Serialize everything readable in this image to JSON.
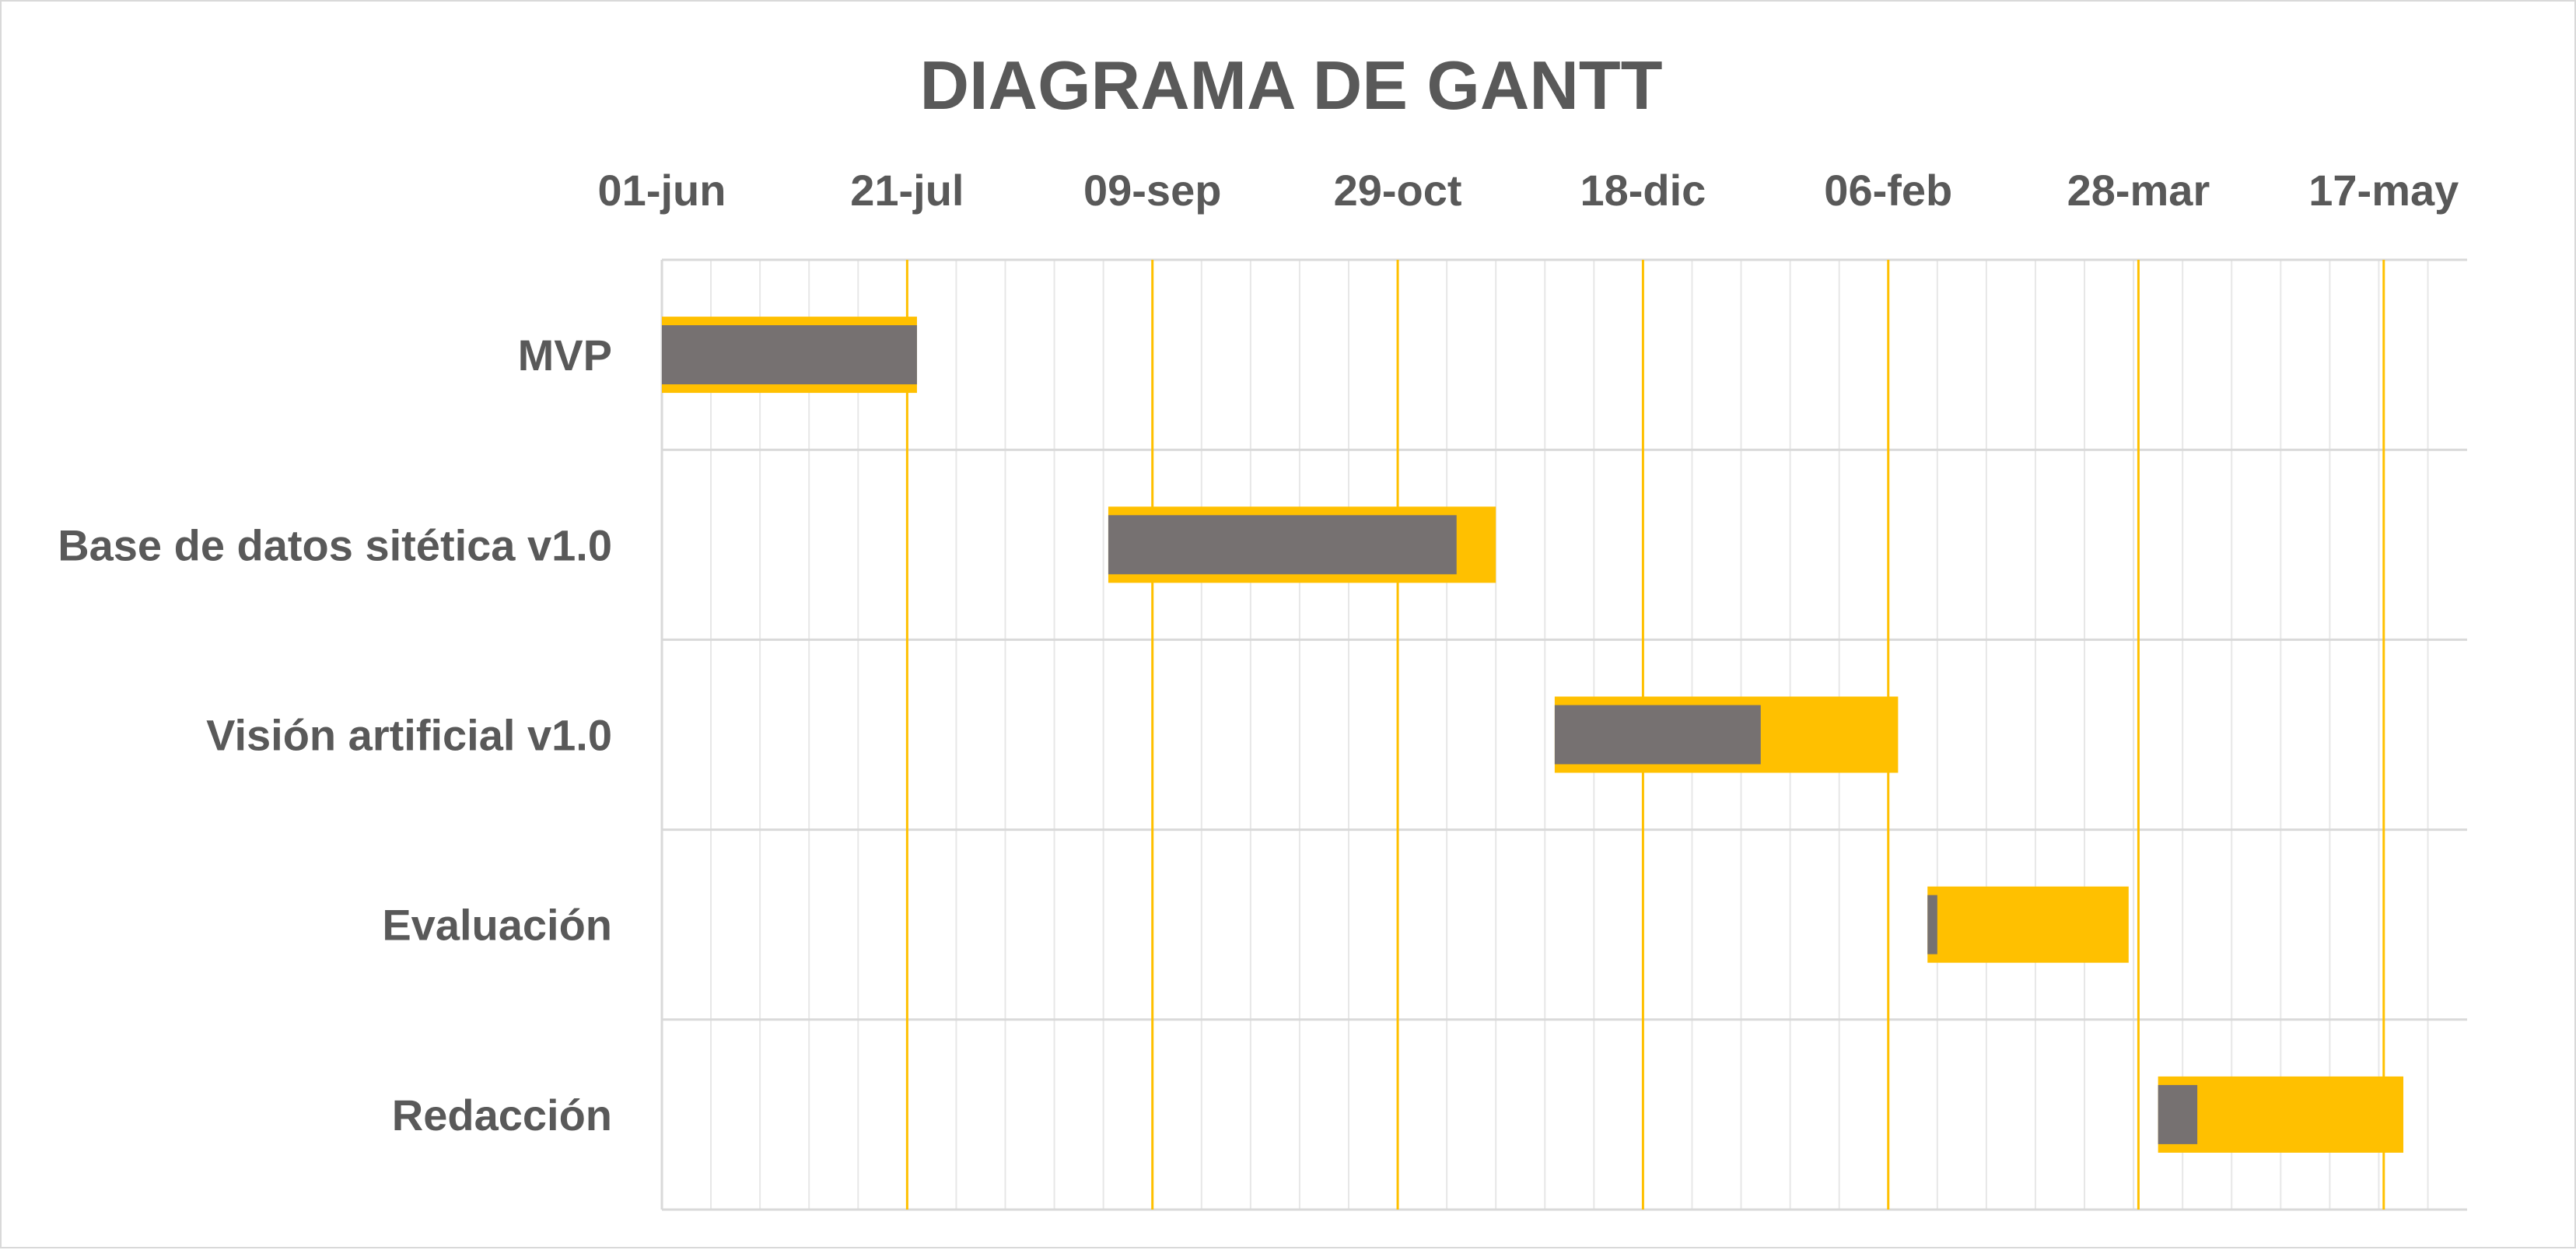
{
  "chart_data": {
    "type": "gantt",
    "title": "DIAGRAMA DE GANTT",
    "x_axis": {
      "position": "top",
      "min": "2023-06-01",
      "max": "2024-06-03",
      "tick_labels": [
        "01-jun",
        "21-jul",
        "09-sep",
        "29-oct",
        "18-dic",
        "06-feb",
        "28-mar",
        "17-may"
      ],
      "tick_dates": [
        "2023-06-01",
        "2023-07-21",
        "2023-09-09",
        "2023-10-29",
        "2023-12-18",
        "2024-02-06",
        "2024-03-28",
        "2024-05-17"
      ],
      "major_gridlines": true,
      "minor_gridlines": true
    },
    "tasks": [
      {
        "name": "MVP",
        "start": "2023-06-01",
        "end": "2023-07-23",
        "progress_end": "2023-07-23"
      },
      {
        "name": "Base de datos sitética v1.0",
        "start": "2023-08-31",
        "end": "2023-11-18",
        "progress_end": "2023-11-10"
      },
      {
        "name": "Visión artificial v1.0",
        "start": "2023-11-30",
        "end": "2024-02-08",
        "progress_end": "2024-01-11"
      },
      {
        "name": "Evaluación",
        "start": "2024-02-14",
        "end": "2024-03-26",
        "progress_end": "2024-02-16"
      },
      {
        "name": "Redacción",
        "start": "2024-04-01",
        "end": "2024-05-21",
        "progress_end": "2024-04-09"
      }
    ],
    "colors": {
      "planned": "#ffc000",
      "progress": "#767171",
      "major_grid": "#ffc000",
      "minor_grid": "#e7e7e7",
      "row_divider": "#d9d9d9",
      "text": "#595959"
    }
  }
}
